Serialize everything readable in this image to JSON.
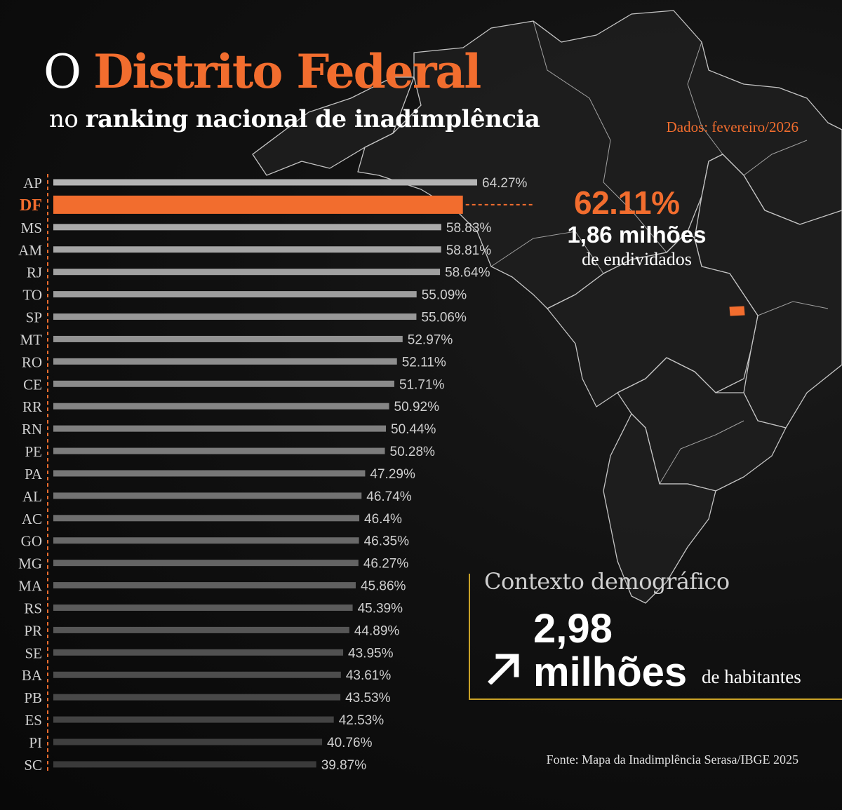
{
  "header": {
    "title_prefix": "O",
    "title_highlight": "Distrito Federal",
    "subtitle_prefix": "no",
    "subtitle_bold": "ranking nacional de inadimplência",
    "date_note": "Dados: fevereiro/2026"
  },
  "highlight": {
    "state": "DF",
    "percent": "62.11%",
    "debtors": "1,86 milhões",
    "debtors_label": "de endividados"
  },
  "context": {
    "title": "Contexto demográfico",
    "number": "2,98",
    "unit": "milhões",
    "suffix": "de habitantes"
  },
  "source": "Fonte: Mapa da Inadimplência Serasa/IBGE 2025",
  "colors": {
    "accent": "#f26d2e",
    "bar_top": "#b4b4b4",
    "bar_bottom": "#3a3a3a",
    "box_border": "#c9a227"
  },
  "chart_data": {
    "type": "bar",
    "orientation": "horizontal",
    "categories": [
      "AP",
      "DF",
      "MS",
      "AM",
      "RJ",
      "TO",
      "SP",
      "MT",
      "RO",
      "CE",
      "RR",
      "RN",
      "PE",
      "PA",
      "AL",
      "AC",
      "GO",
      "MG",
      "MA",
      "RS",
      "PR",
      "SE",
      "BA",
      "PB",
      "ES",
      "PI",
      "SC"
    ],
    "values": [
      64.27,
      62.11,
      58.83,
      58.81,
      58.64,
      55.09,
      55.06,
      52.97,
      52.11,
      51.71,
      50.92,
      50.44,
      50.28,
      47.29,
      46.74,
      46.4,
      46.35,
      46.27,
      45.86,
      45.39,
      44.89,
      43.95,
      43.61,
      43.53,
      42.53,
      40.76,
      39.87
    ],
    "labels": [
      "64.27%",
      "",
      "58.83%",
      "58.81%",
      "58.64%",
      "55.09%",
      "55.06%",
      "52.97%",
      "52.11%",
      "51.71%",
      "50.92%",
      "50.44%",
      "50.28%",
      "47.29%",
      "46.74%",
      "46.4%",
      "46.35%",
      "46.27%",
      "45.86%",
      "45.39%",
      "44.89%",
      "43.95%",
      "43.61%",
      "43.53%",
      "42.53%",
      "40.76%",
      "39.87%"
    ],
    "highlight_category": "DF",
    "xlim": [
      0,
      64.27
    ]
  }
}
